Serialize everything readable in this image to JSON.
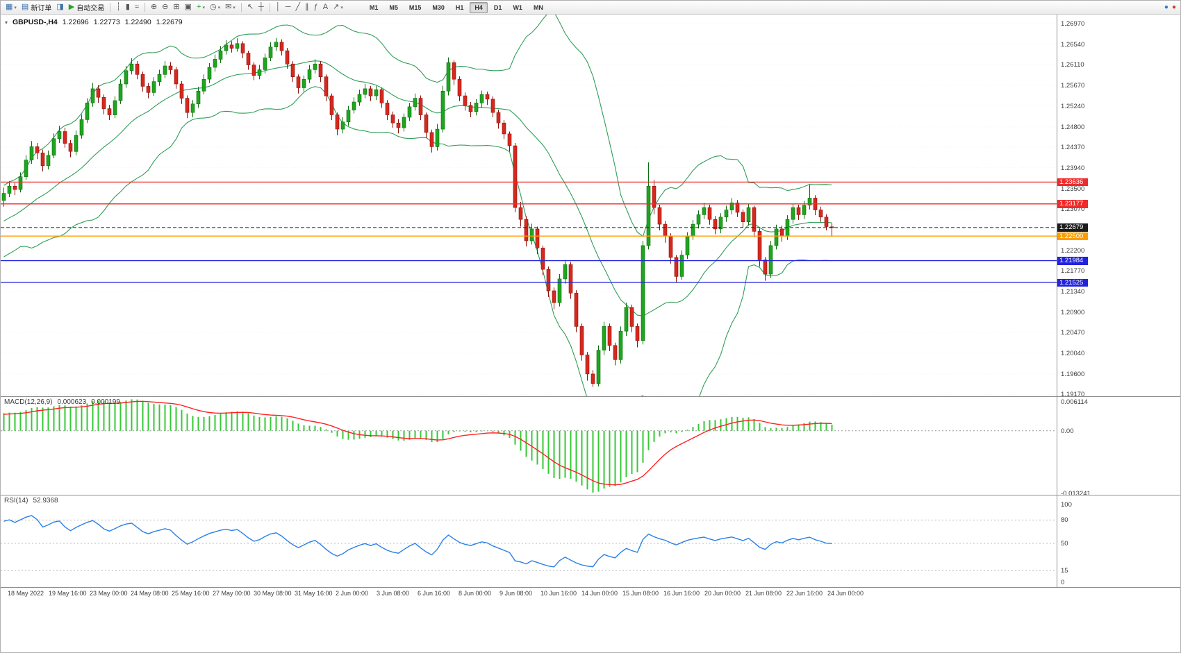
{
  "toolbar": {
    "dropdown_glyph": "▾",
    "items": [
      {
        "name": "new-chart-button",
        "glyph": "▦",
        "color": "#3b6ea8",
        "dropdown": true
      },
      {
        "name": "new-order-button",
        "glyph": "▤",
        "color": "#3b6ea8",
        "label": "新订单"
      },
      {
        "name": "market-watch-button",
        "glyph": "◨",
        "color": "#3b6ea8"
      },
      {
        "name": "autotrading-button",
        "glyph": "▶",
        "color": "#23a623",
        "label": "自动交易"
      },
      {
        "type": "sep"
      },
      {
        "name": "bar-chart-mode-button",
        "glyph": "┆",
        "color": "#555555"
      },
      {
        "name": "candlestick-mode-button",
        "glyph": "▮",
        "color": "#555555"
      },
      {
        "name": "line-chart-mode-button",
        "glyph": "≈",
        "color": "#555555"
      },
      {
        "type": "sep"
      },
      {
        "name": "zoom-in-button",
        "glyph": "⊕",
        "color": "#555555"
      },
      {
        "name": "zoom-out-button",
        "glyph": "⊖",
        "color": "#555555"
      },
      {
        "name": "tile-windows-button",
        "glyph": "⊞",
        "color": "#555555"
      },
      {
        "name": "auto-arrange-button",
        "glyph": "▣",
        "color": "#555555"
      },
      {
        "name": "indicators-button",
        "glyph": "+",
        "color": "#1d9e1d",
        "dropdown": true
      },
      {
        "name": "periods-button",
        "glyph": "◷",
        "color": "#555555",
        "dropdown": true
      },
      {
        "name": "templates-button",
        "glyph": "✉",
        "color": "#555555",
        "dropdown": true
      },
      {
        "type": "sep"
      },
      {
        "name": "cursor-button",
        "glyph": "↖",
        "color": "#555555"
      },
      {
        "name": "crosshair-button",
        "glyph": "┼",
        "color": "#555555"
      },
      {
        "type": "sep"
      },
      {
        "name": "vertical-line-button",
        "glyph": "│",
        "color": "#555555"
      },
      {
        "name": "horizontal-line-button",
        "glyph": "─",
        "color": "#555555"
      },
      {
        "name": "trendline-button",
        "glyph": "╱",
        "color": "#555555"
      },
      {
        "name": "equidistant-channel-button",
        "glyph": "∥",
        "color": "#555555"
      },
      {
        "name": "fibonacci-retracement-button",
        "glyph": "ƒ",
        "color": "#555555"
      },
      {
        "name": "text-label-button",
        "glyph": "A",
        "color": "#555555"
      },
      {
        "name": "arrows-button",
        "glyph": "↗",
        "color": "#555555",
        "dropdown": true
      }
    ],
    "timeframes": {
      "items": [
        "M1",
        "M5",
        "M15",
        "M30",
        "H1",
        "H4",
        "D1",
        "W1",
        "MN"
      ],
      "active": "H4"
    },
    "window_icons": [
      {
        "name": "connection-status-icon",
        "glyph": "●",
        "color": "#2b7bd4"
      },
      {
        "name": "alert-status-icon",
        "glyph": "●",
        "color": "#d6392b"
      }
    ]
  },
  "chart_header": {
    "collapse_icon": "▾",
    "symbol": "GBPUSD-,H4",
    "open": "1.22696",
    "high": "1.22773",
    "low": "1.22490",
    "close": "1.22679"
  },
  "chart_data": {
    "type": "candlestick",
    "symbol": "GBPUSD",
    "timeframe": "H4",
    "price_encoding": "price = 1 + pips / 10000",
    "price_range": [
      1.1917,
      1.2697
    ],
    "price_axis_ticks": [
      "1.26970",
      "1.26540",
      "1.26110",
      "1.25670",
      "1.25240",
      "1.24800",
      "1.24370",
      "1.23940",
      "1.23500",
      "1.23070",
      "1.22200",
      "1.21770",
      "1.21340",
      "1.20900",
      "1.20470",
      "1.20040",
      "1.19600",
      "1.19170"
    ],
    "horizontal_levels": [
      {
        "name": "resistance-1",
        "label": "1.23636",
        "price": 1.23636,
        "color": "#f02b2b",
        "style": "solid"
      },
      {
        "name": "resistance-2",
        "label": "1.23177",
        "price": 1.23177,
        "color": "#f02b2b",
        "style": "solid"
      },
      {
        "name": "current-price",
        "label": "1.22679",
        "price": 1.22679,
        "color": "#1c1c1c",
        "style": "dashed"
      },
      {
        "name": "alert-level",
        "label": "1.22500",
        "price": 1.225,
        "color": "#ff9d00",
        "style": "solid"
      },
      {
        "name": "support-1",
        "label": "1.21984",
        "price": 1.21984,
        "color": "#2222dd",
        "style": "solid"
      },
      {
        "name": "support-2",
        "label": "1.21525",
        "price": 1.21525,
        "color": "#2222dd",
        "style": "solid"
      }
    ],
    "overlays": {
      "bollinger": {
        "period": 20,
        "deviation": 2,
        "color": "#2e9e57"
      }
    },
    "indicators": {
      "macd": {
        "label": "MACD(12,26,9)",
        "value_main": "0.000623",
        "value_signal": "0.000199",
        "axis": [
          "0.006114",
          "0.00",
          "-0.013241"
        ],
        "axis_values": [
          0.006114,
          0,
          -0.013241
        ],
        "histogram_color": "#35c935",
        "signal_color": "#ff2020"
      },
      "rsi": {
        "label": "RSI(14)",
        "value": "52.9368",
        "axis": [
          "100",
          "80",
          "50",
          "15",
          "0"
        ],
        "levels": [
          80,
          50,
          15
        ],
        "line_color": "#2a80e8"
      }
    },
    "time_labels": [
      "18 May 2022",
      "19 May 16:00",
      "23 May 00:00",
      "24 May 08:00",
      "25 May 16:00",
      "27 May 00:00",
      "30 May 08:00",
      "31 May 16:00",
      "2 Jun 00:00",
      "3 Jun 08:00",
      "6 Jun 16:00",
      "8 Jun 00:00",
      "9 Jun 08:00",
      "10 Jun 16:00",
      "14 Jun 00:00",
      "15 Jun 08:00",
      "16 Jun 16:00",
      "20 Jun 00:00",
      "21 Jun 08:00",
      "22 Jun 16:00",
      "24 Jun 00:00"
    ],
    "indicator_warmup_closes_pips": [
      2155,
      2165,
      2180,
      2170,
      2190,
      2205,
      2195,
      2215,
      2230,
      2220,
      2240,
      2255,
      2245,
      2262,
      2275,
      2265,
      2285,
      2295,
      2288,
      2300,
      2312,
      2305,
      2318,
      2330,
      2322,
      2328
    ],
    "candles_pips": [
      [
        2325,
        2352,
        2312,
        2340
      ],
      [
        2340,
        2366,
        2332,
        2355
      ],
      [
        2355,
        2362,
        2336,
        2348
      ],
      [
        2348,
        2384,
        2342,
        2375
      ],
      [
        2375,
        2420,
        2368,
        2410
      ],
      [
        2410,
        2450,
        2402,
        2438
      ],
      [
        2438,
        2446,
        2412,
        2425
      ],
      [
        2425,
        2432,
        2386,
        2398
      ],
      [
        2398,
        2430,
        2390,
        2420
      ],
      [
        2420,
        2466,
        2414,
        2455
      ],
      [
        2455,
        2482,
        2446,
        2470
      ],
      [
        2470,
        2478,
        2436,
        2445
      ],
      [
        2445,
        2452,
        2416,
        2428
      ],
      [
        2428,
        2472,
        2420,
        2462
      ],
      [
        2462,
        2506,
        2455,
        2495
      ],
      [
        2495,
        2540,
        2488,
        2530
      ],
      [
        2530,
        2572,
        2522,
        2560
      ],
      [
        2560,
        2568,
        2530,
        2542
      ],
      [
        2542,
        2548,
        2506,
        2518
      ],
      [
        2518,
        2526,
        2494,
        2505
      ],
      [
        2505,
        2544,
        2498,
        2535
      ],
      [
        2535,
        2580,
        2528,
        2570
      ],
      [
        2570,
        2608,
        2562,
        2598
      ],
      [
        2598,
        2624,
        2590,
        2612
      ],
      [
        2612,
        2618,
        2580,
        2590
      ],
      [
        2590,
        2596,
        2554,
        2565
      ],
      [
        2565,
        2572,
        2540,
        2552
      ],
      [
        2552,
        2584,
        2545,
        2575
      ],
      [
        2575,
        2600,
        2566,
        2590
      ],
      [
        2590,
        2618,
        2582,
        2608
      ],
      [
        2608,
        2616,
        2590,
        2600
      ],
      [
        2600,
        2606,
        2560,
        2570
      ],
      [
        2570,
        2576,
        2528,
        2540
      ],
      [
        2540,
        2546,
        2498,
        2510
      ],
      [
        2510,
        2536,
        2500,
        2528
      ],
      [
        2528,
        2564,
        2520,
        2555
      ],
      [
        2555,
        2590,
        2548,
        2580
      ],
      [
        2580,
        2614,
        2572,
        2605
      ],
      [
        2605,
        2632,
        2596,
        2622
      ],
      [
        2622,
        2650,
        2614,
        2640
      ],
      [
        2640,
        2662,
        2632,
        2652
      ],
      [
        2652,
        2660,
        2636,
        2645
      ],
      [
        2645,
        2666,
        2638,
        2655
      ],
      [
        2655,
        2660,
        2624,
        2635
      ],
      [
        2635,
        2640,
        2600,
        2610
      ],
      [
        2610,
        2616,
        2578,
        2588
      ],
      [
        2588,
        2610,
        2580,
        2600
      ],
      [
        2600,
        2634,
        2592,
        2625
      ],
      [
        2625,
        2658,
        2618,
        2648
      ],
      [
        2648,
        2667,
        2640,
        2658
      ],
      [
        2658,
        2664,
        2630,
        2640
      ],
      [
        2640,
        2646,
        2602,
        2612
      ],
      [
        2612,
        2618,
        2574,
        2585
      ],
      [
        2585,
        2590,
        2550,
        2562
      ],
      [
        2562,
        2588,
        2554,
        2580
      ],
      [
        2580,
        2610,
        2572,
        2600
      ],
      [
        2600,
        2622,
        2592,
        2612
      ],
      [
        2612,
        2618,
        2574,
        2585
      ],
      [
        2585,
        2590,
        2534,
        2545
      ],
      [
        2545,
        2550,
        2494,
        2505
      ],
      [
        2505,
        2510,
        2462,
        2475
      ],
      [
        2475,
        2500,
        2466,
        2490
      ],
      [
        2490,
        2524,
        2482,
        2515
      ],
      [
        2515,
        2542,
        2508,
        2532
      ],
      [
        2532,
        2558,
        2524,
        2548
      ],
      [
        2548,
        2570,
        2540,
        2560
      ],
      [
        2560,
        2566,
        2534,
        2545
      ],
      [
        2545,
        2566,
        2536,
        2558
      ],
      [
        2558,
        2562,
        2520,
        2530
      ],
      [
        2530,
        2536,
        2494,
        2505
      ],
      [
        2505,
        2512,
        2478,
        2488
      ],
      [
        2488,
        2496,
        2466,
        2478
      ],
      [
        2478,
        2508,
        2470,
        2500
      ],
      [
        2500,
        2530,
        2492,
        2522
      ],
      [
        2522,
        2550,
        2514,
        2540
      ],
      [
        2540,
        2546,
        2494,
        2505
      ],
      [
        2505,
        2510,
        2456,
        2468
      ],
      [
        2468,
        2474,
        2426,
        2438
      ],
      [
        2438,
        2486,
        2430,
        2475
      ],
      [
        2475,
        2566,
        2468,
        2555
      ],
      [
        2555,
        2626,
        2546,
        2615
      ],
      [
        2615,
        2620,
        2568,
        2580
      ],
      [
        2580,
        2586,
        2534,
        2545
      ],
      [
        2545,
        2552,
        2514,
        2525
      ],
      [
        2525,
        2532,
        2500,
        2512
      ],
      [
        2512,
        2538,
        2504,
        2530
      ],
      [
        2530,
        2556,
        2520,
        2548
      ],
      [
        2548,
        2554,
        2526,
        2538
      ],
      [
        2538,
        2544,
        2500,
        2510
      ],
      [
        2510,
        2516,
        2476,
        2488
      ],
      [
        2488,
        2494,
        2454,
        2465
      ],
      [
        2465,
        2470,
        2428,
        2440
      ],
      [
        2440,
        2446,
        2300,
        2310
      ],
      [
        2310,
        2322,
        2270,
        2285
      ],
      [
        2285,
        2292,
        2228,
        2240
      ],
      [
        2240,
        2276,
        2232,
        2265
      ],
      [
        2265,
        2270,
        2212,
        2225
      ],
      [
        2225,
        2230,
        2168,
        2180
      ],
      [
        2180,
        2186,
        2122,
        2135
      ],
      [
        2135,
        2142,
        2096,
        2110
      ],
      [
        2110,
        2170,
        2102,
        2160
      ],
      [
        2160,
        2200,
        2150,
        2190
      ],
      [
        2190,
        2196,
        2118,
        2130
      ],
      [
        2130,
        2136,
        2048,
        2060
      ],
      [
        2060,
        2066,
        1988,
        2000
      ],
      [
        2000,
        2006,
        1946,
        1960
      ],
      [
        1960,
        1968,
        1933,
        1940
      ],
      [
        1940,
        2020,
        1934,
        2010
      ],
      [
        2010,
        2070,
        2000,
        2060
      ],
      [
        2060,
        2066,
        2008,
        2020
      ],
      [
        2020,
        2026,
        1978,
        1990
      ],
      [
        1990,
        2060,
        1982,
        2050
      ],
      [
        2050,
        2110,
        2040,
        2100
      ],
      [
        2100,
        2106,
        2048,
        2060
      ],
      [
        2060,
        2066,
        2016,
        2030
      ],
      [
        2030,
        2240,
        2022,
        2230
      ],
      [
        2230,
        2405,
        2222,
        2355
      ],
      [
        2355,
        2368,
        2296,
        2310
      ],
      [
        2310,
        2316,
        2262,
        2275
      ],
      [
        2275,
        2282,
        2236,
        2250
      ],
      [
        2250,
        2256,
        2192,
        2205
      ],
      [
        2205,
        2210,
        2152,
        2165
      ],
      [
        2165,
        2220,
        2158,
        2210
      ],
      [
        2210,
        2258,
        2202,
        2250
      ],
      [
        2250,
        2284,
        2242,
        2275
      ],
      [
        2275,
        2304,
        2266,
        2295
      ],
      [
        2295,
        2320,
        2286,
        2310
      ],
      [
        2310,
        2316,
        2274,
        2285
      ],
      [
        2285,
        2292,
        2254,
        2265
      ],
      [
        2265,
        2298,
        2256,
        2290
      ],
      [
        2290,
        2314,
        2280,
        2305
      ],
      [
        2305,
        2330,
        2296,
        2320
      ],
      [
        2320,
        2326,
        2290,
        2300
      ],
      [
        2300,
        2306,
        2268,
        2280
      ],
      [
        2280,
        2318,
        2272,
        2310
      ],
      [
        2310,
        2314,
        2248,
        2260
      ],
      [
        2260,
        2266,
        2186,
        2200
      ],
      [
        2200,
        2206,
        2156,
        2170
      ],
      [
        2170,
        2240,
        2162,
        2230
      ],
      [
        2230,
        2274,
        2222,
        2265
      ],
      [
        2265,
        2272,
        2238,
        2250
      ],
      [
        2250,
        2294,
        2242,
        2285
      ],
      [
        2285,
        2318,
        2276,
        2310
      ],
      [
        2310,
        2316,
        2284,
        2295
      ],
      [
        2295,
        2324,
        2286,
        2315
      ],
      [
        2315,
        2358,
        2306,
        2330
      ],
      [
        2330,
        2336,
        2294,
        2305
      ],
      [
        2305,
        2312,
        2280,
        2290
      ],
      [
        2290,
        2296,
        2262,
        2270
      ],
      [
        2269.6,
        2277.3,
        2249,
        2267.9
      ]
    ]
  },
  "colors": {
    "bull": "#1fa51f",
    "bull_border": "#0d6e0d",
    "bear": "#d6281e",
    "bear_border": "#8f120c",
    "grid": "#f2f2f2",
    "axis_text": "#3a3a3a",
    "panel_border": "#8d8d8d",
    "macd_zero_line": "#999999",
    "rsi_level_line": "#bbbbbb"
  }
}
